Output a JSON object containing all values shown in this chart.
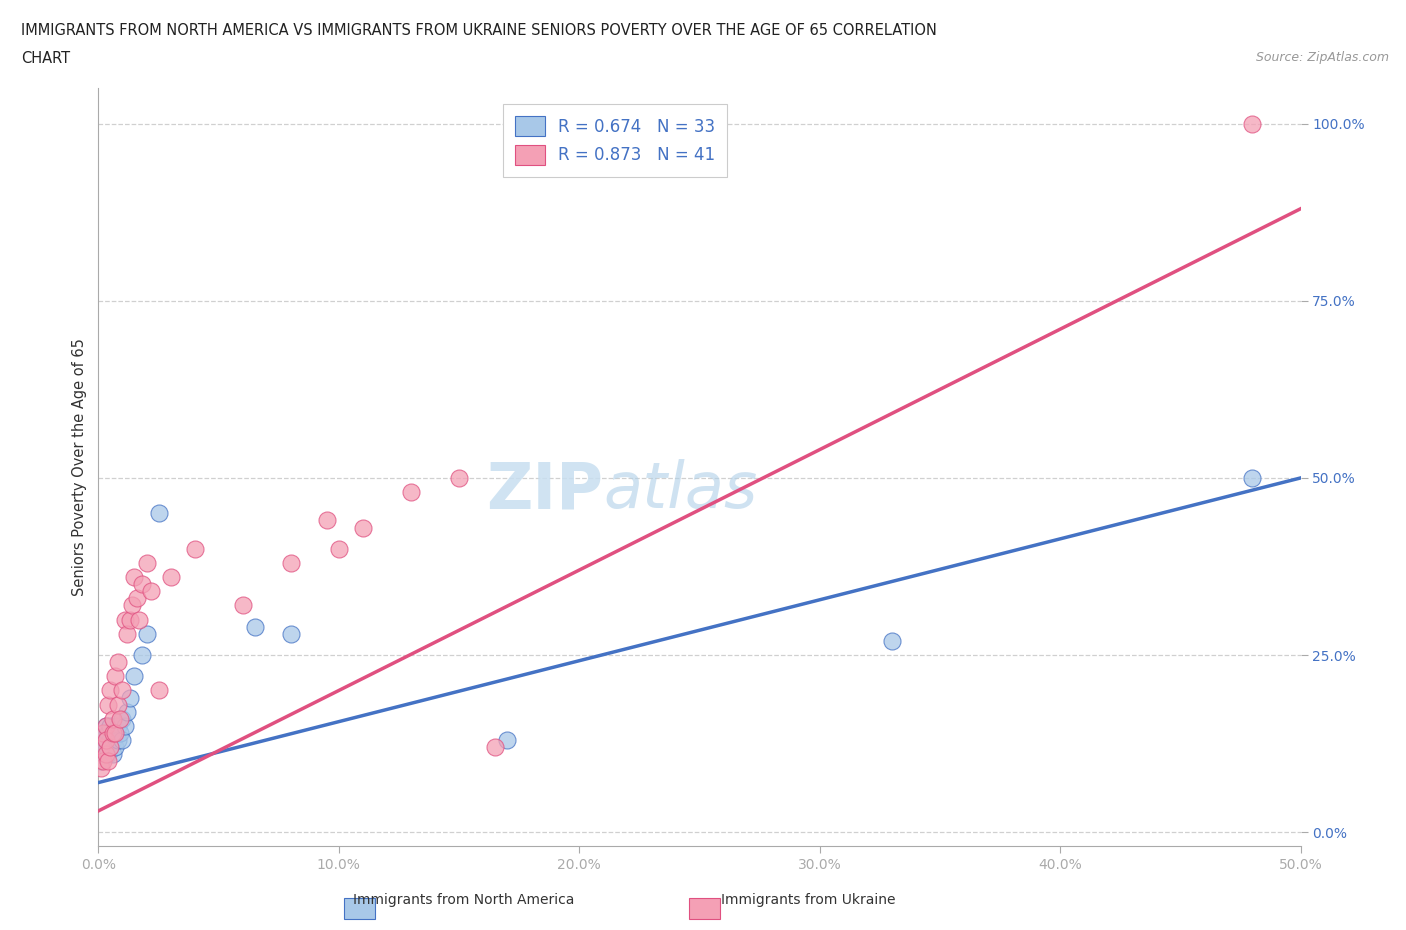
{
  "title_line1": "IMMIGRANTS FROM NORTH AMERICA VS IMMIGRANTS FROM UKRAINE SENIORS POVERTY OVER THE AGE OF 65 CORRELATION",
  "title_line2": "CHART",
  "source": "Source: ZipAtlas.com",
  "ylabel": "Seniors Poverty Over the Age of 65",
  "xlim": [
    0.0,
    0.5
  ],
  "ylim": [
    -0.02,
    1.05
  ],
  "xticks": [
    0.0,
    0.1,
    0.2,
    0.3,
    0.4,
    0.5
  ],
  "xticklabels": [
    "0.0%",
    "10.0%",
    "20.0%",
    "30.0%",
    "40.0%",
    "50.0%"
  ],
  "yticks": [
    0.0,
    0.25,
    0.5,
    0.75,
    1.0
  ],
  "yticklabels": [
    "0.0%",
    "25.0%",
    "50.0%",
    "75.0%",
    "100.0%"
  ],
  "watermark_zip": "ZIP",
  "watermark_atlas": "atlas",
  "legend_label1": "R = 0.674   N = 33",
  "legend_label2": "R = 0.873   N = 41",
  "color_blue": "#a8c8e8",
  "color_pink": "#f4a0b5",
  "line_color_blue": "#4472c4",
  "line_color_pink": "#e05080",
  "tick_color": "#4472c4",
  "label_color": "#333333",
  "grid_color": "#d0d0d0",
  "background_color": "#ffffff",
  "legend_bottom_label1": "Immigrants from North America",
  "legend_bottom_label2": "Immigrants from Ukraine",
  "north_america_x": [
    0.001,
    0.001,
    0.002,
    0.002,
    0.003,
    0.003,
    0.003,
    0.004,
    0.004,
    0.005,
    0.005,
    0.005,
    0.006,
    0.006,
    0.007,
    0.007,
    0.008,
    0.008,
    0.009,
    0.01,
    0.01,
    0.011,
    0.012,
    0.013,
    0.015,
    0.018,
    0.02,
    0.025,
    0.065,
    0.08,
    0.17,
    0.33,
    0.48
  ],
  "north_america_y": [
    0.1,
    0.13,
    0.11,
    0.14,
    0.12,
    0.15,
    0.13,
    0.11,
    0.14,
    0.12,
    0.13,
    0.15,
    0.11,
    0.13,
    0.14,
    0.12,
    0.15,
    0.13,
    0.14,
    0.16,
    0.13,
    0.15,
    0.17,
    0.19,
    0.22,
    0.25,
    0.28,
    0.45,
    0.29,
    0.28,
    0.13,
    0.27,
    0.5
  ],
  "ukraine_x": [
    0.001,
    0.001,
    0.002,
    0.002,
    0.003,
    0.003,
    0.003,
    0.004,
    0.004,
    0.005,
    0.005,
    0.006,
    0.006,
    0.007,
    0.007,
    0.008,
    0.008,
    0.009,
    0.01,
    0.011,
    0.012,
    0.013,
    0.014,
    0.015,
    0.016,
    0.017,
    0.018,
    0.02,
    0.022,
    0.025,
    0.03,
    0.04,
    0.06,
    0.08,
    0.095,
    0.1,
    0.11,
    0.13,
    0.15,
    0.165,
    0.48
  ],
  "ukraine_y": [
    0.09,
    0.12,
    0.1,
    0.14,
    0.11,
    0.15,
    0.13,
    0.1,
    0.18,
    0.12,
    0.2,
    0.14,
    0.16,
    0.22,
    0.14,
    0.24,
    0.18,
    0.16,
    0.2,
    0.3,
    0.28,
    0.3,
    0.32,
    0.36,
    0.33,
    0.3,
    0.35,
    0.38,
    0.34,
    0.2,
    0.36,
    0.4,
    0.32,
    0.38,
    0.44,
    0.4,
    0.43,
    0.48,
    0.5,
    0.12,
    1.0
  ],
  "na_line_x0": 0.0,
  "na_line_y0": 0.07,
  "na_line_x1": 0.5,
  "na_line_y1": 0.5,
  "uk_line_x0": 0.0,
  "uk_line_y0": 0.03,
  "uk_line_x1": 0.5,
  "uk_line_y1": 0.88
}
